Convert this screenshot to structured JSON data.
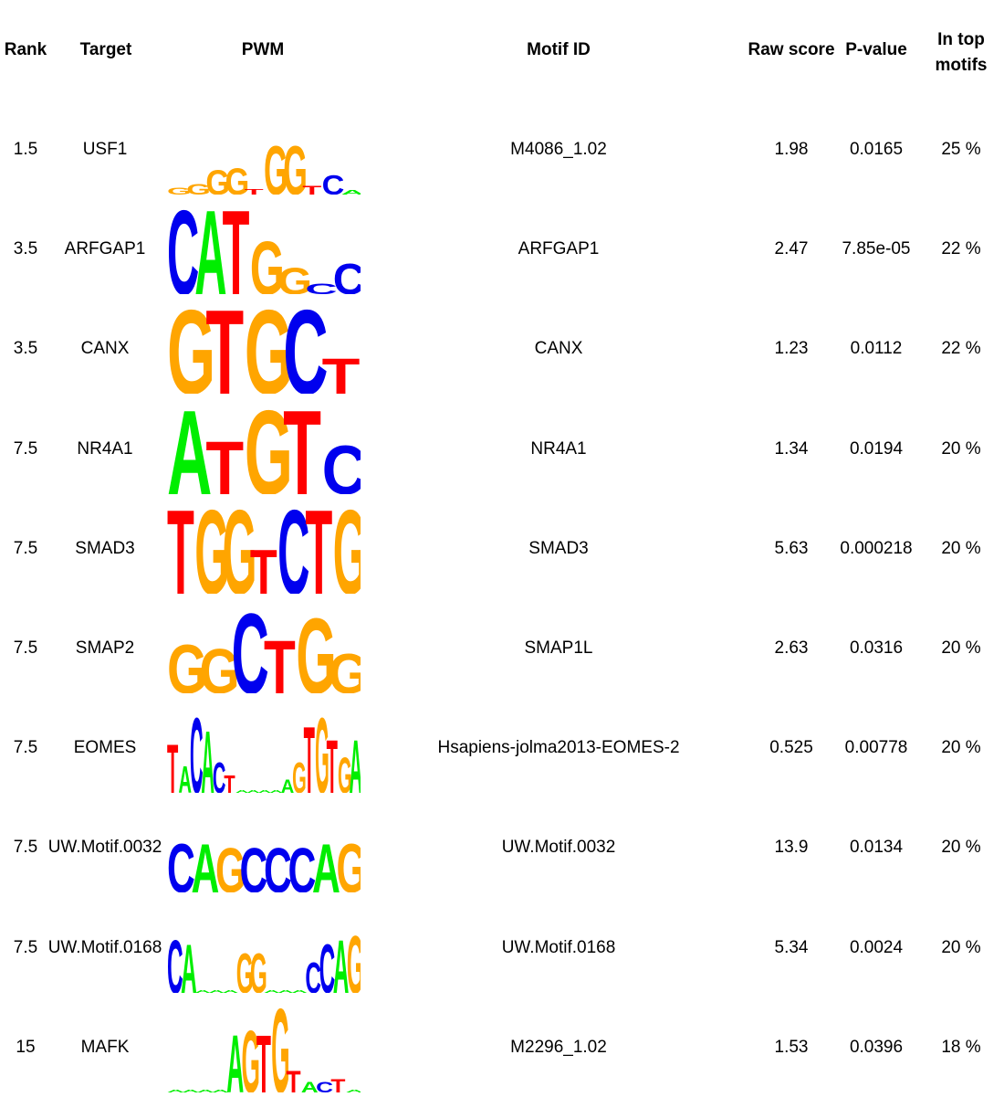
{
  "headers": {
    "rank": "Rank",
    "target": "Target",
    "pwm": "PWM",
    "motif_id": "Motif ID",
    "raw_score": "Raw score",
    "p_value": "P-value",
    "in_top_line1": "In top",
    "in_top_line2": "motifs"
  },
  "colors": {
    "A": "#00ee00",
    "C": "#0000ee",
    "G": "#ffa500",
    "T": "#ff0000"
  },
  "rows": [
    {
      "rank": "1.5",
      "target": "USF1",
      "motif_id": "M4086_1.02",
      "raw_score": "1.98",
      "p_value": "0.0165",
      "in_top": "25 %",
      "logo": [
        [
          "G",
          0.08
        ],
        [
          "G",
          0.12
        ],
        [
          "G",
          0.28
        ],
        [
          "G",
          0.3
        ],
        [
          "T",
          0.06
        ],
        [
          "G",
          0.55
        ],
        [
          "G",
          0.55
        ],
        [
          "T",
          0.1
        ],
        [
          "C",
          0.22
        ],
        [
          "A",
          0.05
        ]
      ]
    },
    {
      "rank": "3.5",
      "target": "ARFGAP1",
      "motif_id": "ARFGAP1",
      "raw_score": "2.47",
      "p_value": "7.85e-05",
      "in_top": "22 %",
      "logo": [
        [
          "C",
          0.95
        ],
        [
          "A",
          0.95
        ],
        [
          "T",
          0.95
        ],
        [
          "G",
          0.6
        ],
        [
          "G",
          0.3
        ],
        [
          "C",
          0.12
        ],
        [
          "C",
          0.35
        ]
      ]
    },
    {
      "rank": "3.5",
      "target": "CANX",
      "motif_id": "CANX",
      "raw_score": "1.23",
      "p_value": "0.0112",
      "in_top": "22 %",
      "logo": [
        [
          "G",
          0.95
        ],
        [
          "T",
          0.95
        ],
        [
          "G",
          0.95
        ],
        [
          "C",
          0.95
        ],
        [
          "T",
          0.4
        ]
      ]
    },
    {
      "rank": "7.5",
      "target": "NR4A1",
      "motif_id": "NR4A1",
      "raw_score": "1.34",
      "p_value": "0.0194",
      "in_top": "20 %",
      "logo": [
        [
          "A",
          0.95
        ],
        [
          "T",
          0.6
        ],
        [
          "G",
          0.95
        ],
        [
          "T",
          0.95
        ],
        [
          "C",
          0.55
        ]
      ]
    },
    {
      "rank": "7.5",
      "target": "SMAD3",
      "motif_id": "SMAD3",
      "raw_score": "5.63",
      "p_value": "0.000218",
      "in_top": "20 %",
      "logo": [
        [
          "T",
          0.95
        ],
        [
          "G",
          0.95
        ],
        [
          "G",
          0.95
        ],
        [
          "T",
          0.5
        ],
        [
          "C",
          0.95
        ],
        [
          "T",
          0.95
        ],
        [
          "G",
          0.95
        ]
      ]
    },
    {
      "rank": "7.5",
      "target": "SMAP2",
      "motif_id": "SMAP1L",
      "raw_score": "2.63",
      "p_value": "0.0316",
      "in_top": "20 %",
      "logo": [
        [
          "G",
          0.55
        ],
        [
          "G",
          0.5
        ],
        [
          "C",
          0.9
        ],
        [
          "T",
          0.6
        ],
        [
          "G",
          0.85
        ],
        [
          "G",
          0.45
        ]
      ]
    },
    {
      "rank": "7.5",
      "target": "EOMES",
      "motif_id": "Hsapiens-jolma2013-EOMES-2",
      "raw_score": "0.525",
      "p_value": "0.00778",
      "in_top": "20 %",
      "logo": [
        [
          "T",
          0.55
        ],
        [
          "A",
          0.3
        ],
        [
          "C",
          0.85
        ],
        [
          "A",
          0.7
        ],
        [
          "C",
          0.35
        ],
        [
          "T",
          0.2
        ],
        [
          "A",
          0.03
        ],
        [
          "A",
          0.03
        ],
        [
          "A",
          0.03
        ],
        [
          "A",
          0.03
        ],
        [
          "A",
          0.15
        ],
        [
          "G",
          0.35
        ],
        [
          "T",
          0.75
        ],
        [
          "G",
          0.85
        ],
        [
          "T",
          0.6
        ],
        [
          "G",
          0.4
        ],
        [
          "A",
          0.6
        ]
      ]
    },
    {
      "rank": "7.5",
      "target": "UW.Motif.0032",
      "motif_id": "UW.Motif.0032",
      "raw_score": "13.9",
      "p_value": "0.0134",
      "in_top": "20 %",
      "logo": [
        [
          "C",
          0.55
        ],
        [
          "A",
          0.55
        ],
        [
          "G",
          0.5
        ],
        [
          "C",
          0.5
        ],
        [
          "C",
          0.5
        ],
        [
          "C",
          0.5
        ],
        [
          "A",
          0.55
        ],
        [
          "G",
          0.55
        ]
      ]
    },
    {
      "rank": "7.5",
      "target": "UW.Motif.0168",
      "motif_id": "UW.Motif.0168",
      "raw_score": "5.34",
      "p_value": "0.0024",
      "in_top": "20 %",
      "logo": [
        [
          "C",
          0.6
        ],
        [
          "A",
          0.55
        ],
        [
          "A",
          0.03
        ],
        [
          "A",
          0.03
        ],
        [
          "A",
          0.03
        ],
        [
          "G",
          0.45
        ],
        [
          "G",
          0.45
        ],
        [
          "A",
          0.03
        ],
        [
          "A",
          0.03
        ],
        [
          "A",
          0.03
        ],
        [
          "C",
          0.35
        ],
        [
          "C",
          0.55
        ],
        [
          "A",
          0.6
        ],
        [
          "G",
          0.65
        ]
      ]
    },
    {
      "rank": "15",
      "target": "MAFK",
      "motif_id": "M2296_1.02",
      "raw_score": "1.53",
      "p_value": "0.0396",
      "in_top": "18 %",
      "logo": [
        [
          "A",
          0.03
        ],
        [
          "A",
          0.03
        ],
        [
          "A",
          0.03
        ],
        [
          "A",
          0.03
        ],
        [
          "A",
          0.65
        ],
        [
          "G",
          0.7
        ],
        [
          "T",
          0.65
        ],
        [
          "G",
          0.95
        ],
        [
          "T",
          0.25
        ],
        [
          "A",
          0.12
        ],
        [
          "C",
          0.12
        ],
        [
          "T",
          0.15
        ],
        [
          "A",
          0.03
        ]
      ]
    }
  ]
}
